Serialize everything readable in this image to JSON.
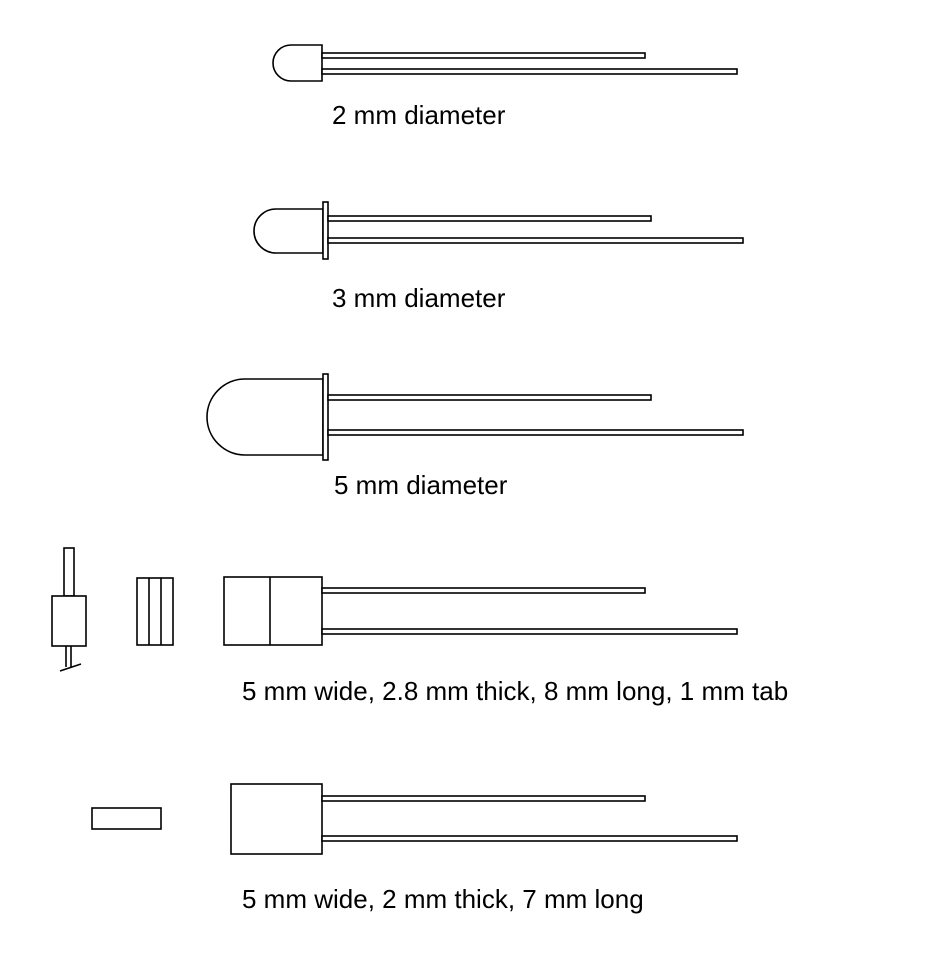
{
  "diagram": {
    "stroke_color": "#000000",
    "background": "#ffffff",
    "packages": [
      {
        "id": "led-2mm",
        "shape": "round",
        "label": "2 mm diameter"
      },
      {
        "id": "led-3mm",
        "shape": "round-flange",
        "label": "3 mm diameter"
      },
      {
        "id": "led-5mm",
        "shape": "round-flange",
        "label": "5 mm diameter"
      },
      {
        "id": "led-rect-tab",
        "shape": "rectangular-with-tab",
        "label": "5 mm wide, 2.8 mm thick, 8 mm long, 1 mm tab"
      },
      {
        "id": "led-rect",
        "shape": "rectangular",
        "label": "5 mm wide, 2 mm thick, 7 mm long"
      }
    ]
  }
}
